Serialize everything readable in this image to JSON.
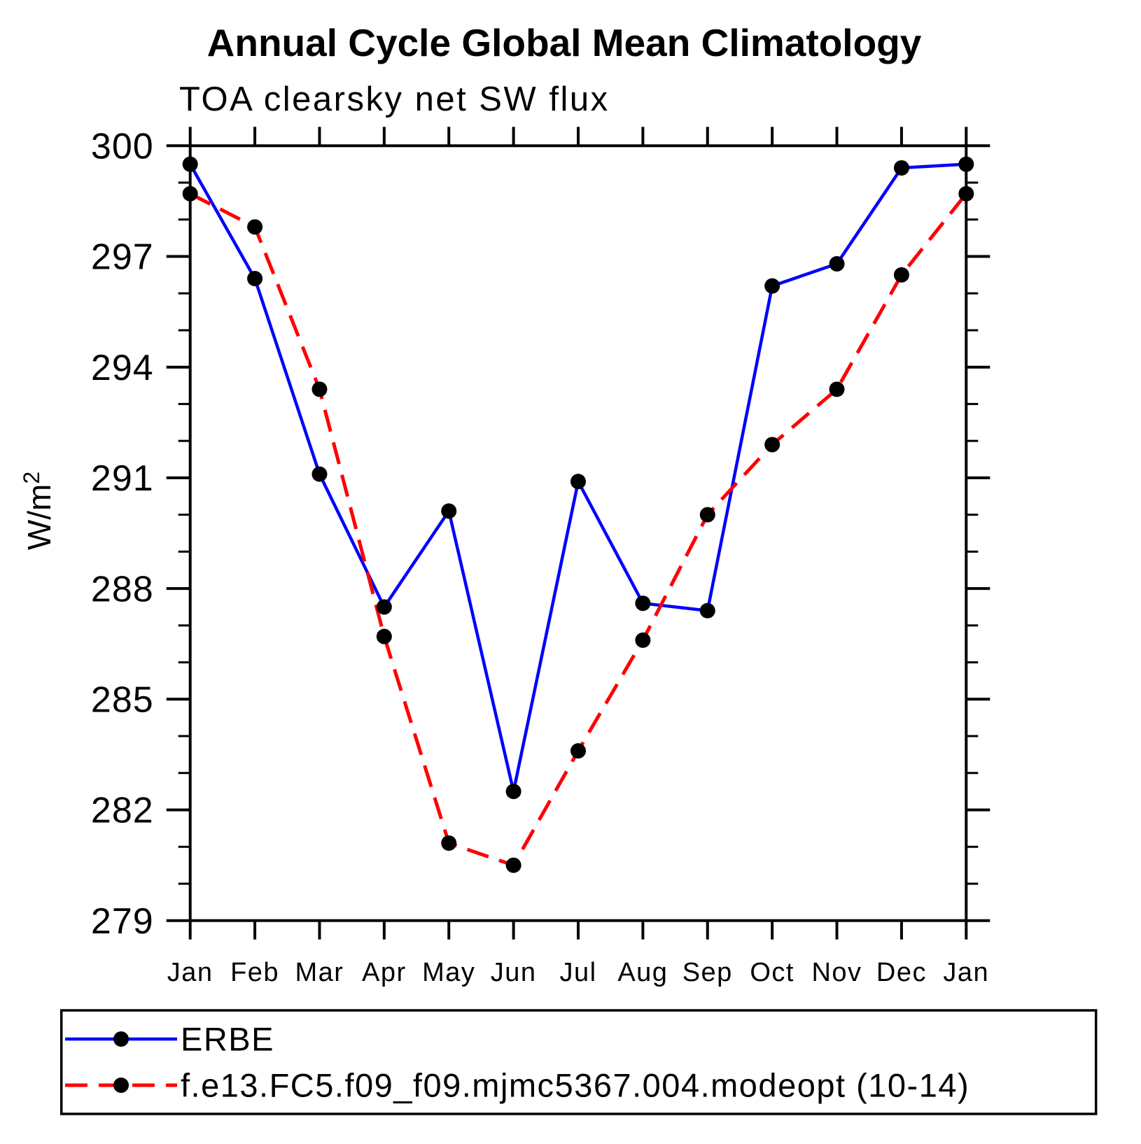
{
  "figure": {
    "title": "Annual Cycle Global Mean Climatology",
    "subtitle": "TOA clearsky net SW flux"
  },
  "y_axis": {
    "unit_base": "W/m",
    "unit_exponent": "2"
  },
  "chart_data": {
    "type": "line",
    "categories": [
      "Jan",
      "Feb",
      "Mar",
      "Apr",
      "May",
      "Jun",
      "Jul",
      "Aug",
      "Sep",
      "Oct",
      "Nov",
      "Dec",
      "Jan"
    ],
    "series": [
      {
        "name": "ERBE",
        "color": "#0000ff",
        "line_style": "solid",
        "marker": "filled-circle",
        "marker_color": "#000000",
        "values": [
          299.5,
          296.4,
          291.1,
          287.5,
          290.1,
          282.5,
          290.9,
          287.6,
          287.4,
          296.2,
          296.8,
          299.4,
          299.5
        ]
      },
      {
        "name": "f.e13.FC5.f09_f09.mjmc5367.004.modeopt (10-14)",
        "color": "#ff0000",
        "line_style": "dashed",
        "marker": "filled-circle",
        "marker_color": "#000000",
        "values": [
          298.7,
          297.8,
          293.4,
          286.7,
          281.1,
          280.5,
          283.6,
          286.6,
          290.0,
          291.9,
          293.4,
          296.5,
          298.7
        ]
      }
    ],
    "title": "TOA clearsky net SW flux",
    "xlabel": "",
    "ylabel": "W/m2",
    "ylim": [
      279,
      300
    ],
    "y_major_ticks": [
      279,
      282,
      285,
      288,
      291,
      294,
      297,
      300
    ],
    "y_minor_step": 1,
    "grid": false,
    "legend_position": "bottom"
  },
  "legend": {
    "entries": [
      {
        "label": "ERBE"
      },
      {
        "label": "f.e13.FC5.f09_f09.mjmc5367.004.modeopt (10-14)"
      }
    ]
  }
}
